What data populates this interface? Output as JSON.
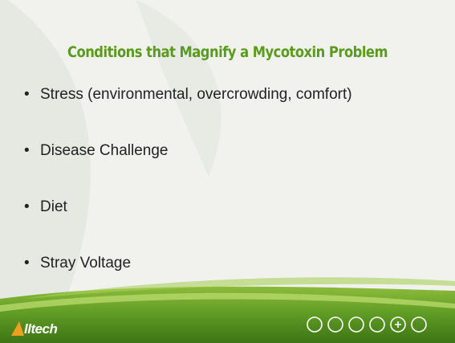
{
  "title": "Conditions that Magnify a Mycotoxin Problem",
  "bullets": [
    "Stress (environmental, overcrowding, comfort)",
    "Disease Challenge",
    "Diet",
    "Stray Voltage"
  ],
  "logo": "lltech"
}
